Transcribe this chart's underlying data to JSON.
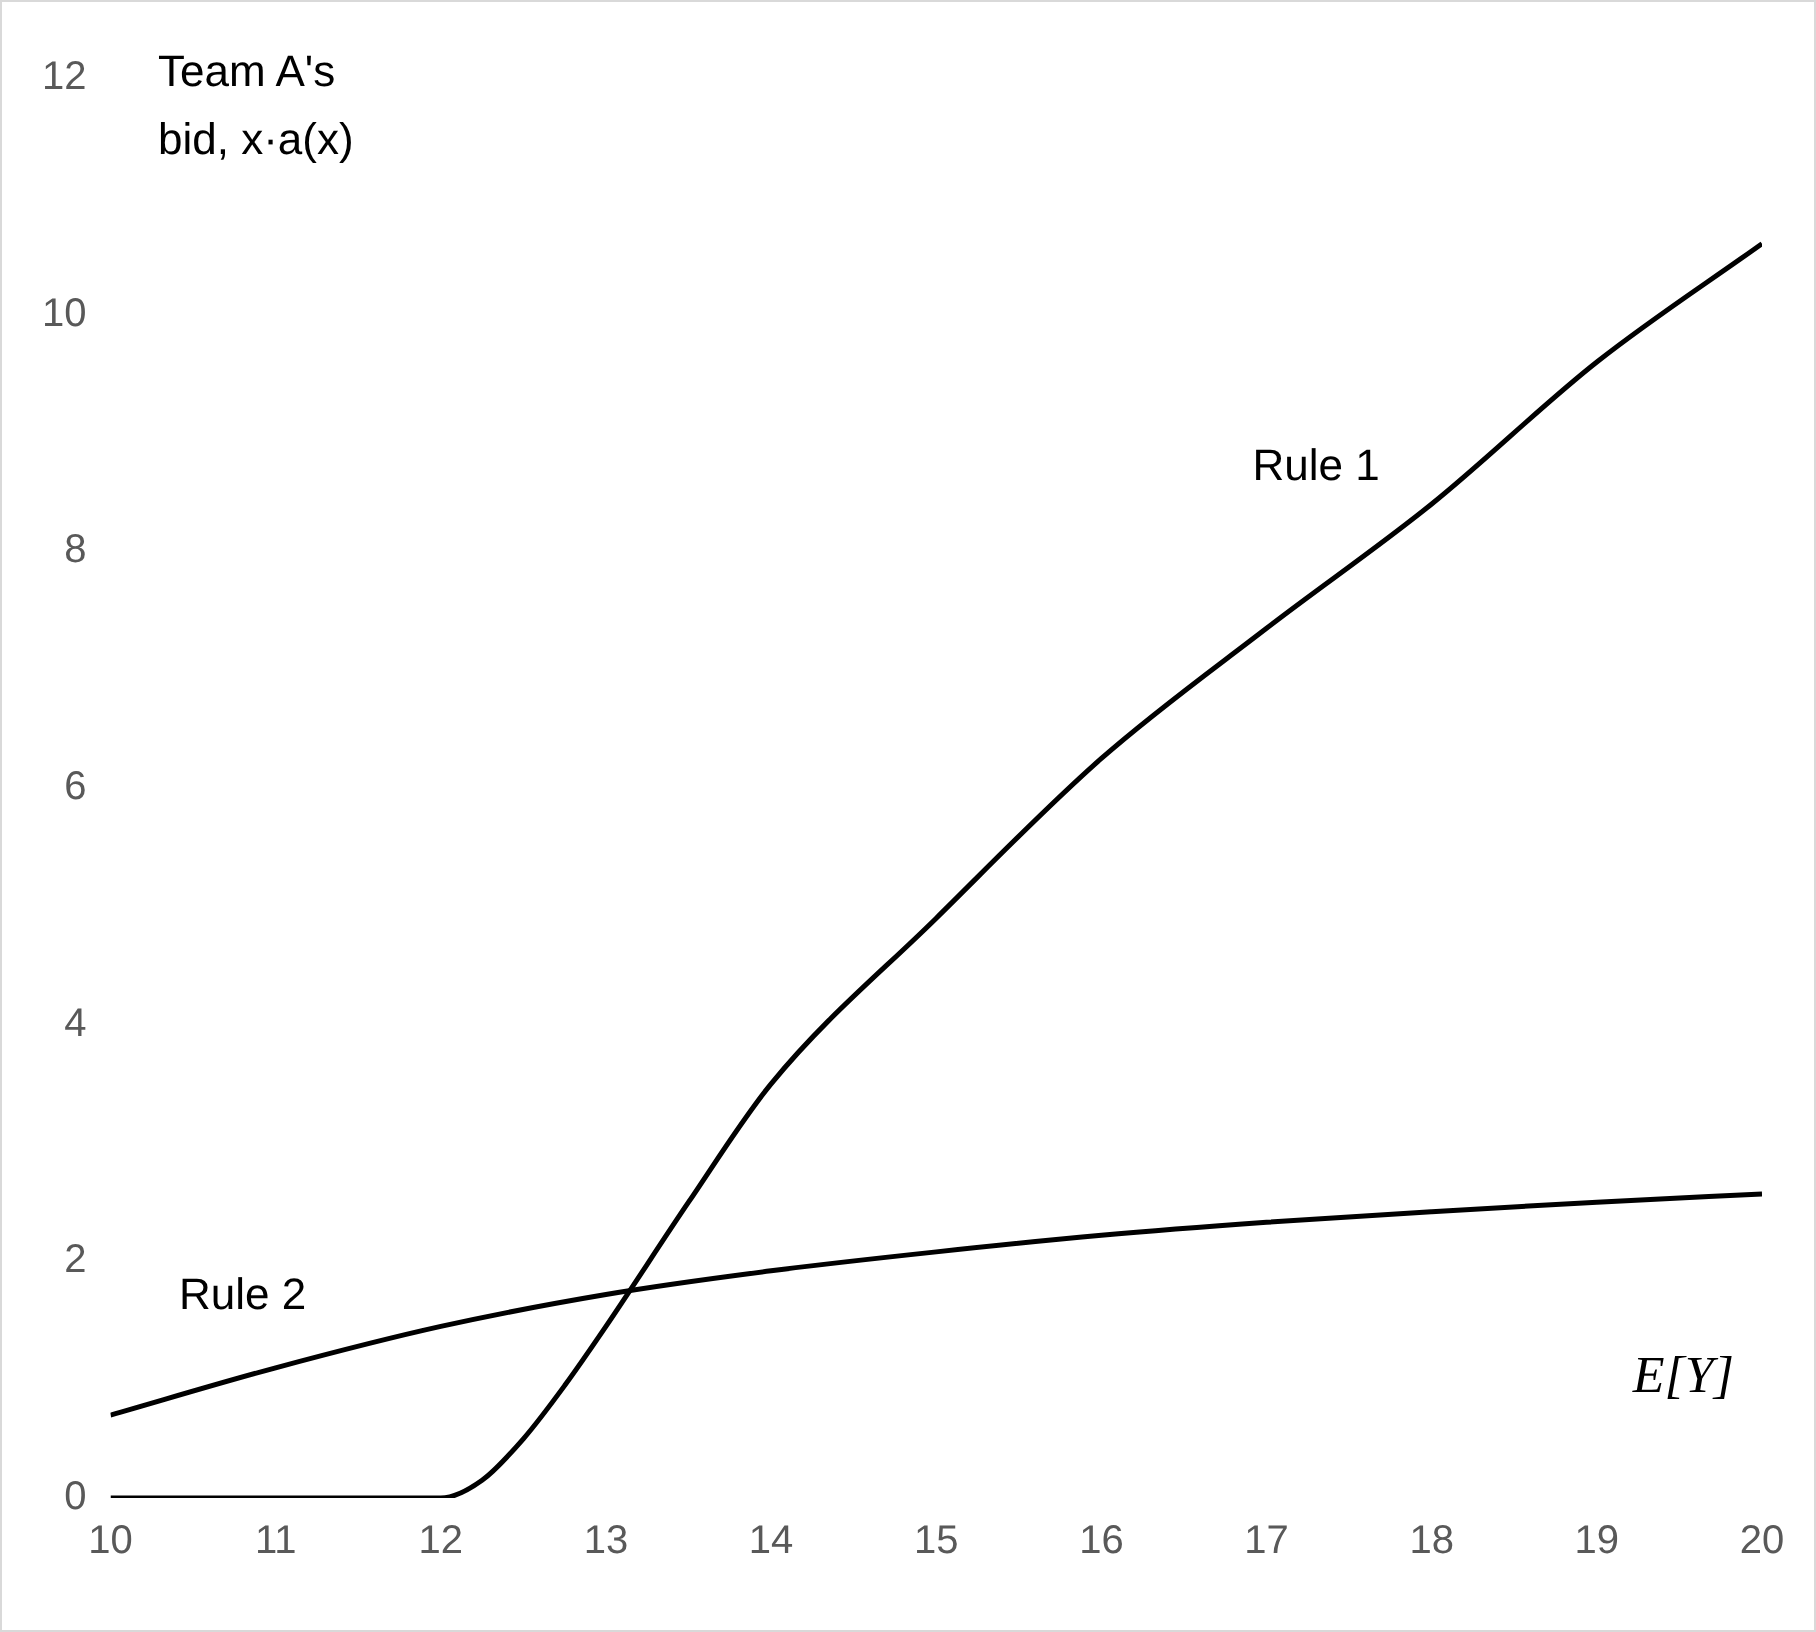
{
  "chart_data": {
    "type": "line",
    "ylabel": "Team A's bid, x·a(x)",
    "xlabel": "E[Y]",
    "xlim": [
      10,
      20
    ],
    "ylim": [
      0,
      12
    ],
    "xticks": [
      10,
      11,
      12,
      13,
      14,
      15,
      16,
      17,
      18,
      19,
      20
    ],
    "yticks": [
      0,
      2,
      4,
      6,
      8,
      10,
      12
    ],
    "grid": false,
    "legend": false,
    "marker": "none",
    "line_style": "solid",
    "series": [
      {
        "name": "Rule 1",
        "color": "#000000",
        "x": [
          10,
          11,
          12,
          12.25,
          12.5,
          12.75,
          13,
          13.5,
          14,
          15,
          16,
          17,
          18,
          19,
          20
        ],
        "values": [
          0,
          0,
          0,
          0.15,
          0.5,
          0.95,
          1.45,
          2.5,
          3.5,
          4.9,
          6.25,
          7.35,
          8.4,
          9.6,
          10.6
        ]
      },
      {
        "name": "Rule 2",
        "color": "#000000",
        "x": [
          10,
          11,
          12,
          13,
          14,
          15,
          16,
          17,
          18,
          19,
          20
        ],
        "values": [
          0.7,
          1.1,
          1.45,
          1.72,
          1.92,
          2.08,
          2.22,
          2.33,
          2.42,
          2.5,
          2.57
        ]
      }
    ]
  }
}
